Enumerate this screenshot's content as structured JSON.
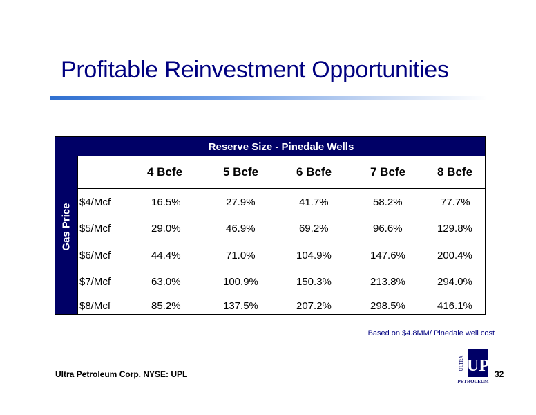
{
  "slide": {
    "title": "Profitable Reinvestment Opportunities",
    "footer": "Ultra Petroleum Corp. NYSE: UPL",
    "page_number": "32",
    "footnote": "Based on $4.8MM/ Pinedale well cost",
    "logo": {
      "name": "ultra-petroleum-logo",
      "text_top": "ULTRA",
      "text_main": "UP",
      "text_bottom": "PETROLEUM",
      "color": "#000066"
    }
  },
  "table": {
    "header": "Reserve Size - Pinedale Wells",
    "side_label": "Gas Price",
    "columns": [
      "4 Bcfe",
      "5 Bcfe",
      "6 Bcfe",
      "7 Bcfe",
      "8 Bcfe"
    ],
    "rows": [
      {
        "label": "$4/Mcf",
        "values": [
          "16.5%",
          "27.9%",
          "41.7%",
          "58.2%",
          "77.7%"
        ]
      },
      {
        "label": "$5/Mcf",
        "values": [
          "29.0%",
          "46.9%",
          "69.2%",
          "96.6%",
          "129.8%"
        ]
      },
      {
        "label": "$6/Mcf",
        "values": [
          "44.4%",
          "71.0%",
          "104.9%",
          "147.6%",
          "200.4%"
        ]
      },
      {
        "label": "$7/Mcf",
        "values": [
          "63.0%",
          "100.9%",
          "150.3%",
          "213.8%",
          "294.0%"
        ]
      },
      {
        "label": "$8/Mcf",
        "values": [
          "85.2%",
          "137.5%",
          "207.2%",
          "298.5%",
          "416.1%"
        ]
      }
    ],
    "header_color": "#000066"
  }
}
